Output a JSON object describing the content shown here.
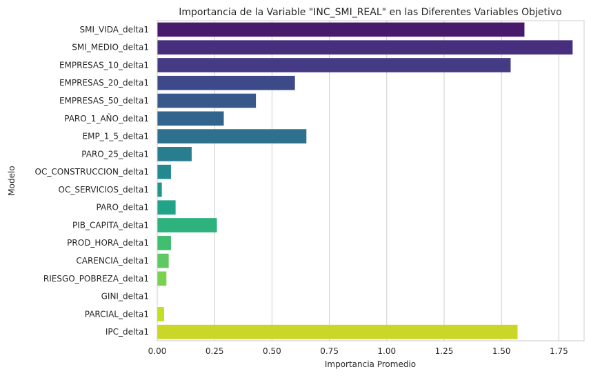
{
  "chart_data": {
    "type": "bar",
    "orientation": "horizontal",
    "title": "Importancia de la Variable \"INC_SMI_REAL\" en las Diferentes Variables Objetivo",
    "xlabel": "Importancia Promedio",
    "ylabel": "Modelo",
    "xlim": [
      0,
      1.86
    ],
    "xticks": [
      "0.00",
      "0.25",
      "0.50",
      "0.75",
      "1.00",
      "1.25",
      "1.50",
      "1.75"
    ],
    "grid": "vertical",
    "palette": "viridis",
    "categories": [
      "SMI_VIDA_delta1",
      "SMI_MEDIO_delta1",
      "EMPRESAS_10_delta1",
      "EMPRESAS_20_delta1",
      "EMPRESAS_50_delta1",
      "PARO_1_AÑO_delta1",
      "EMP_1_5_delta1",
      "PARO_25_delta1",
      "OC_CONSTRUCCION_delta1",
      "OC_SERVICIOS_delta1",
      "PARO_delta1",
      "PIB_CAPITA_delta1",
      "PROD_HORA_delta1",
      "CARENCIA_delta1",
      "RIESGO_POBREZA_delta1",
      "GINI_delta1",
      "PARCIAL_delta1",
      "IPC_delta1"
    ],
    "values": [
      1.6,
      1.81,
      1.54,
      0.6,
      0.43,
      0.29,
      0.65,
      0.15,
      0.06,
      0.02,
      0.08,
      0.26,
      0.06,
      0.05,
      0.04,
      0.0,
      0.03,
      1.57
    ],
    "colors": [
      "#481a6c",
      "#472f7d",
      "#443b84",
      "#3e4989",
      "#38588c",
      "#32658e",
      "#2d718e",
      "#287d8e",
      "#23898e",
      "#1f958b",
      "#20a386",
      "#2db27d",
      "#42be71",
      "#5ec962",
      "#7ad151",
      "#a0da39",
      "#c2df23",
      "#cad628"
    ]
  }
}
